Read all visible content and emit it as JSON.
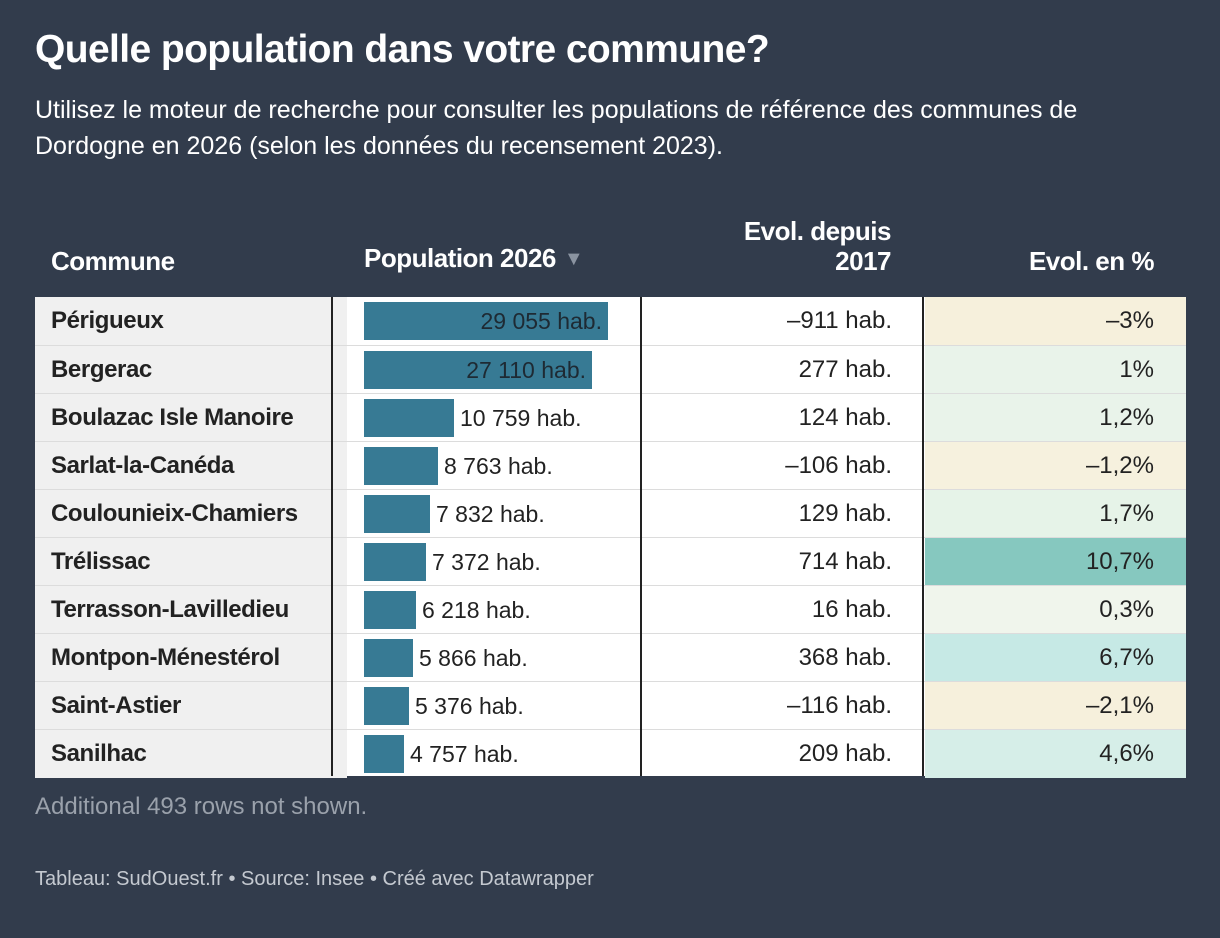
{
  "title": "Quelle population dans votre commune?",
  "description": "Utilisez le moteur de recherche pour consulter les populations de référence des communes de Dordogne en 2026 (selon les données du recensement 2023).",
  "columns": {
    "commune": "Commune",
    "population": "Population 2026",
    "sort_icon": "▼",
    "evol": "Evol. depuis 2017",
    "pct": "Evol. en %"
  },
  "more_rows": "Additional 493 rows not shown.",
  "footer": "Tableau: SudOuest.fr • Source: Insee • Créé avec Datawrapper",
  "colors": {
    "bar": "#377a94",
    "pct_negative": "#f6f0dc",
    "pct_low": "#e8f3ea",
    "pct_mid": "#d7efe9",
    "pct_high": "#c6e9e5",
    "pct_top": "#86c8bf"
  },
  "chart_data": {
    "type": "table",
    "population_max": 29055,
    "rows": [
      {
        "commune": "Périgueux",
        "population": 29055,
        "population_label": "29 055 hab.",
        "evol": "–911 hab.",
        "pct": "–3%",
        "pct_value": -3.0,
        "pct_color": "#f6f0dc"
      },
      {
        "commune": "Bergerac",
        "population": 27110,
        "population_label": "27 110 hab.",
        "evol": "277 hab.",
        "pct": "1%",
        "pct_value": 1.0,
        "pct_color": "#e9f3ea"
      },
      {
        "commune": "Boulazac Isle Manoire",
        "population": 10759,
        "population_label": "10 759 hab.",
        "evol": "124 hab.",
        "pct": "1,2%",
        "pct_value": 1.2,
        "pct_color": "#e9f3ea"
      },
      {
        "commune": "Sarlat-la-Canéda",
        "population": 8763,
        "population_label": "8 763 hab.",
        "evol": "–106 hab.",
        "pct": "–1,2%",
        "pct_value": -1.2,
        "pct_color": "#f6f1de"
      },
      {
        "commune": "Coulounieix-Chamiers",
        "population": 7832,
        "population_label": "7 832 hab.",
        "evol": "129 hab.",
        "pct": "1,7%",
        "pct_value": 1.7,
        "pct_color": "#e6f3e8"
      },
      {
        "commune": "Trélissac",
        "population": 7372,
        "population_label": "7 372 hab.",
        "evol": "714 hab.",
        "pct": "10,7%",
        "pct_value": 10.7,
        "pct_color": "#86c8bf"
      },
      {
        "commune": "Terrasson-Lavilledieu",
        "population": 6218,
        "population_label": "6 218 hab.",
        "evol": "16 hab.",
        "pct": "0,3%",
        "pct_value": 0.3,
        "pct_color": "#f0f5ec"
      },
      {
        "commune": "Montpon-Ménestérol",
        "population": 5866,
        "population_label": "5 866 hab.",
        "evol": "368 hab.",
        "pct": "6,7%",
        "pct_value": 6.7,
        "pct_color": "#c6e9e5"
      },
      {
        "commune": "Saint-Astier",
        "population": 5376,
        "population_label": "5 376 hab.",
        "evol": "–116 hab.",
        "pct": "–2,1%",
        "pct_value": -2.1,
        "pct_color": "#f6f0dc"
      },
      {
        "commune": "Sanilhac",
        "population": 4757,
        "population_label": "4 757 hab.",
        "evol": "209 hab.",
        "pct": "4,6%",
        "pct_value": 4.6,
        "pct_color": "#d6eee8"
      }
    ]
  }
}
